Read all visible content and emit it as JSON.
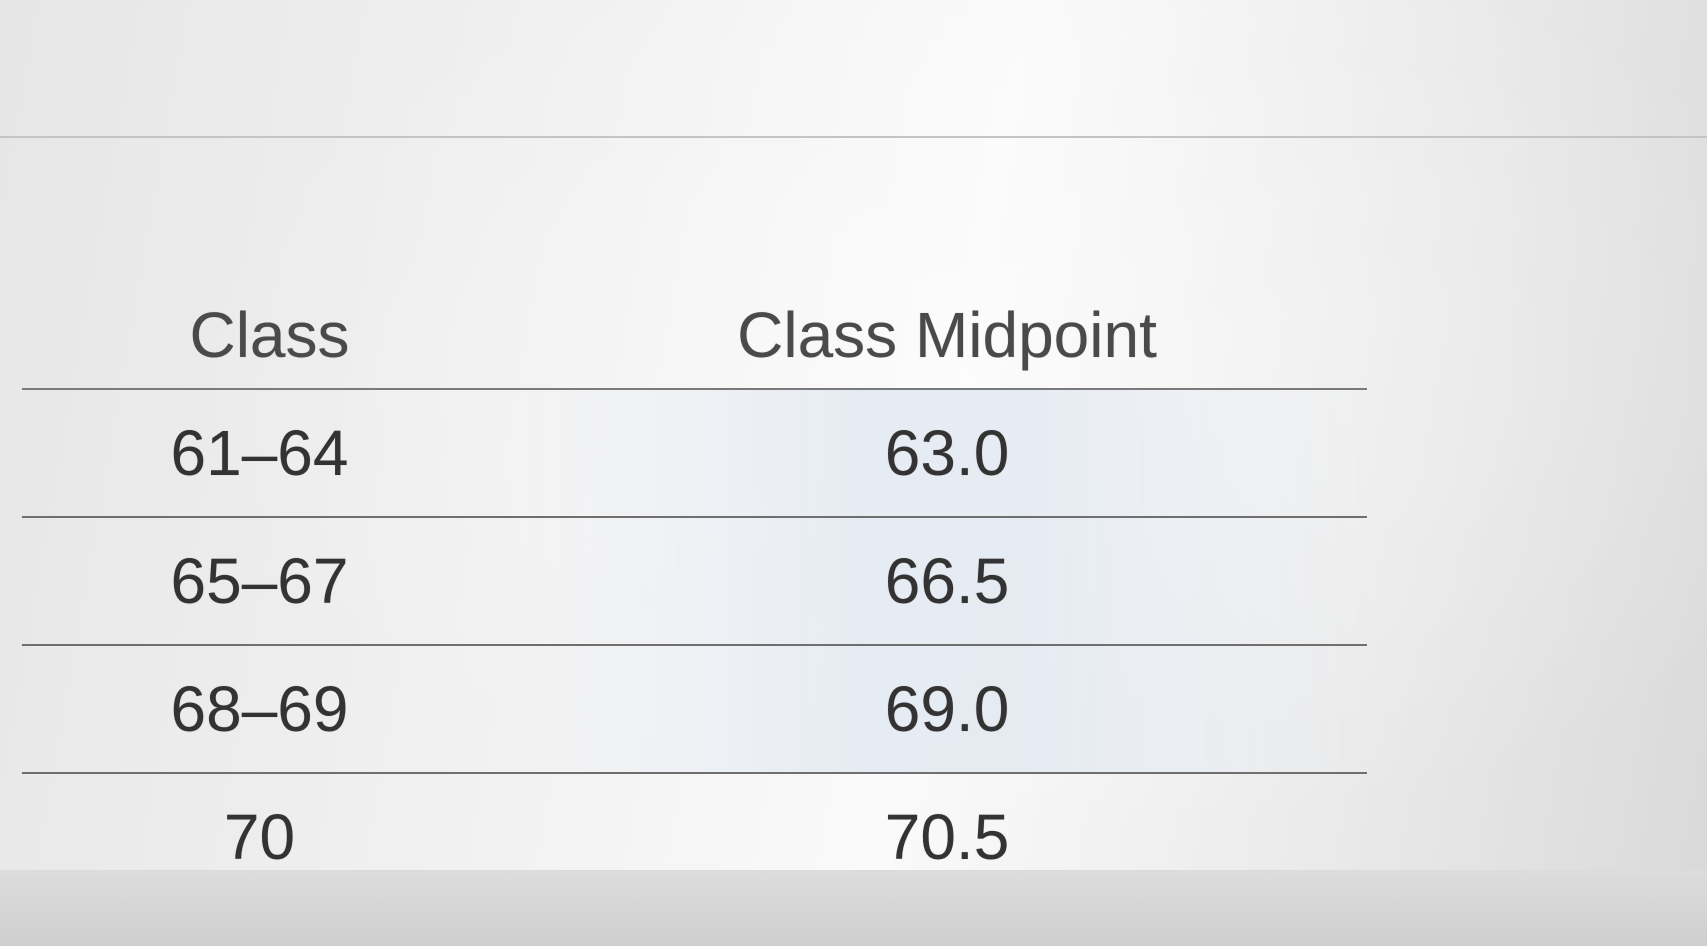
{
  "table": {
    "headers": [
      "Class",
      "Class Midpoint"
    ],
    "rows": [
      {
        "class": "61–64",
        "midpoint": "63.0"
      },
      {
        "class": "65–67",
        "midpoint": "66.5"
      },
      {
        "class": "68–69",
        "midpoint": "69.0"
      },
      {
        "class": "70",
        "midpoint": "70.5"
      }
    ]
  }
}
